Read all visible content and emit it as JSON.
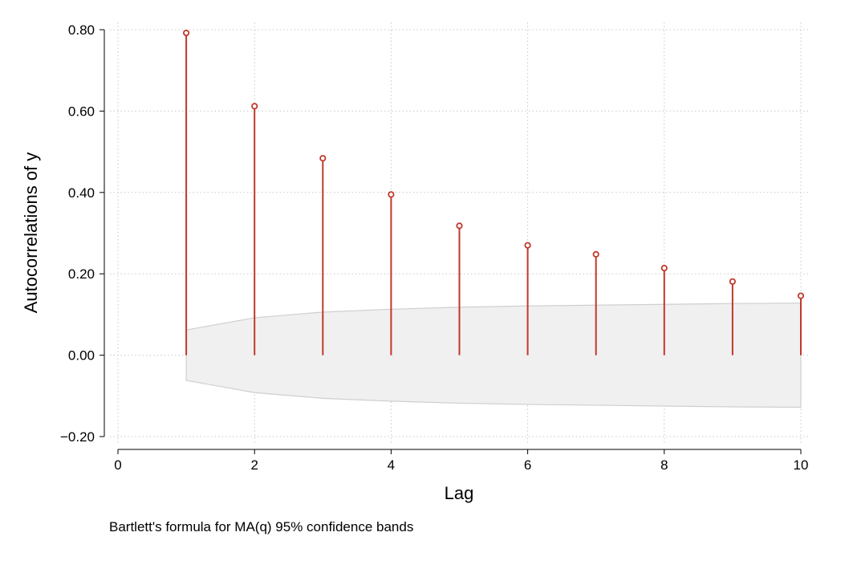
{
  "chart_data": {
    "type": "stem",
    "title": "",
    "xlabel": "Lag",
    "ylabel": "Autocorrelations of y",
    "note": "Bartlett's formula for MA(q) 95% confidence bands",
    "xlim": [
      0,
      10
    ],
    "ylim": [
      -0.2,
      0.8
    ],
    "x_ticks": [
      0,
      2,
      4,
      6,
      8,
      10
    ],
    "x_tick_labels": [
      "0",
      "2",
      "4",
      "6",
      "8",
      "10"
    ],
    "y_ticks": [
      -0.2,
      0,
      0.2,
      0.4,
      0.6,
      0.8
    ],
    "y_tick_labels": [
      "−0.20",
      "0.00",
      "0.20",
      "0.40",
      "0.60",
      "0.80"
    ],
    "grid": true,
    "lags": [
      1,
      2,
      3,
      4,
      5,
      6,
      7,
      8,
      9,
      10
    ],
    "values": [
      0.792,
      0.612,
      0.484,
      0.395,
      0.318,
      0.27,
      0.248,
      0.214,
      0.181,
      0.146
    ],
    "confidence_band": [
      0.062,
      0.092,
      0.106,
      0.113,
      0.118,
      0.121,
      0.123,
      0.125,
      0.127,
      0.128
    ],
    "colors": {
      "stem": "#c0392b",
      "band_fill": "#f0f0f0",
      "band_edge": "#cfcfcf",
      "grid": "#c8c8c8",
      "axis": "#000000"
    }
  }
}
